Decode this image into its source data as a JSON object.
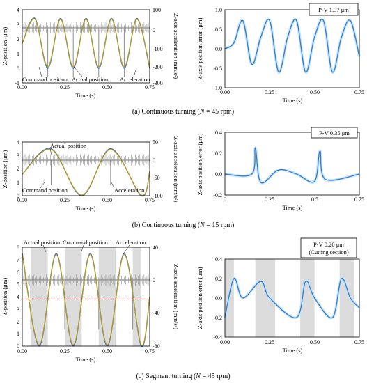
{
  "colors": {
    "command": "#3b6ec2",
    "actual": "#b89a1d",
    "acceleration": "#8c8c8c",
    "error": "#3b78c8",
    "error_band": "#bfe6f7",
    "shade": "#dcdcdc",
    "reference": "#c00000"
  },
  "chart_data": [
    {
      "id": "a-left",
      "type": "line",
      "ylabel": "Z-position (μm)",
      "y2label": "Z-axis acceleration (mm/s²)",
      "xlabel": "Time (s)",
      "xlim": [
        0,
        0.75
      ],
      "ylim": [
        -1,
        4
      ],
      "y2lim": [
        -300,
        100
      ],
      "xticks": [
        "0.00",
        "0.25",
        "0.50",
        "0.75"
      ],
      "yticks": [
        "-1",
        "0",
        "1",
        "2",
        "3",
        "4"
      ],
      "y2ticks": [
        "-300",
        "-200",
        "-100",
        "0",
        "100"
      ],
      "annotations": [
        "Command position",
        "Actual position",
        "Acceleration"
      ],
      "series": [
        {
          "name": "Command position",
          "values": [
            [
              0.0,
              1.7
            ],
            [
              0.075,
              3.4
            ],
            [
              0.15,
              0.0
            ],
            [
              0.225,
              3.4
            ],
            [
              0.3,
              0.0
            ],
            [
              0.375,
              3.4
            ],
            [
              0.45,
              0.0
            ],
            [
              0.525,
              3.4
            ],
            [
              0.6,
              0.0
            ],
            [
              0.675,
              3.4
            ],
            [
              0.75,
              0.0
            ]
          ]
        },
        {
          "name": "Actual position",
          "values": [
            [
              0.0,
              1.7
            ],
            [
              0.075,
              3.35
            ],
            [
              0.15,
              0.1
            ],
            [
              0.225,
              3.35
            ],
            [
              0.3,
              0.1
            ],
            [
              0.375,
              3.35
            ],
            [
              0.45,
              0.1
            ],
            [
              0.525,
              3.35
            ],
            [
              0.6,
              0.1
            ],
            [
              0.675,
              3.35
            ],
            [
              0.75,
              0.1
            ]
          ]
        },
        {
          "name": "Acceleration",
          "values": [
            [
              0.0,
              0
            ],
            [
              0.15,
              -270
            ],
            [
              0.3,
              -270
            ],
            [
              0.45,
              -270
            ],
            [
              0.6,
              -270
            ],
            [
              0.75,
              -270
            ]
          ]
        }
      ]
    },
    {
      "id": "a-right",
      "type": "line",
      "ylabel": "Z-axis position error (μm)",
      "xlabel": "Time (s)",
      "xlim": [
        0,
        0.75
      ],
      "ylim": [
        -1.0,
        1.0
      ],
      "xticks": [
        "0.00",
        "0.25",
        "0.50",
        "0.75"
      ],
      "yticks": [
        "-1.0",
        "-0.5",
        "0.0",
        "0.5",
        "1.0"
      ],
      "annotations": [
        "P-V 1.37 μm"
      ],
      "series": [
        {
          "name": "Position error",
          "values": [
            [
              0.0,
              0.0
            ],
            [
              0.05,
              0.15
            ],
            [
              0.1,
              0.72
            ],
            [
              0.15,
              -0.4
            ],
            [
              0.2,
              0.3
            ],
            [
              0.25,
              0.72
            ],
            [
              0.3,
              -0.6
            ],
            [
              0.35,
              0.3
            ],
            [
              0.4,
              0.72
            ],
            [
              0.45,
              -0.6
            ],
            [
              0.5,
              0.3
            ],
            [
              0.55,
              0.72
            ],
            [
              0.6,
              -0.6
            ],
            [
              0.65,
              0.3
            ],
            [
              0.7,
              0.72
            ],
            [
              0.75,
              -0.2
            ]
          ]
        }
      ]
    },
    {
      "id": "b-left",
      "type": "line",
      "ylabel": "Z-position (μm)",
      "y2label": "Z-axis acceleration (mm/s²)",
      "xlabel": "Time (s)",
      "xlim": [
        0,
        0.75
      ],
      "ylim": [
        0,
        4
      ],
      "y2lim": [
        -100,
        50
      ],
      "xticks": [
        "0.00",
        "0.25",
        "0.50",
        "0.75"
      ],
      "yticks": [
        "0",
        "1",
        "2",
        "3",
        "4"
      ],
      "y2ticks": [
        "-100",
        "-50",
        "0",
        "50"
      ],
      "annotations": [
        "Actual position",
        "Command position",
        "Acceleration"
      ],
      "series": [
        {
          "name": "Command position",
          "values": [
            [
              0.0,
              1.6
            ],
            [
              0.17,
              3.5
            ],
            [
              0.35,
              0.0
            ],
            [
              0.52,
              3.5
            ],
            [
              0.7,
              0.0
            ],
            [
              0.75,
              1.8
            ]
          ]
        },
        {
          "name": "Actual position",
          "values": [
            [
              0.0,
              1.6
            ],
            [
              0.17,
              3.45
            ],
            [
              0.35,
              0.05
            ],
            [
              0.52,
              3.45
            ],
            [
              0.7,
              0.05
            ],
            [
              0.75,
              1.8
            ]
          ]
        },
        {
          "name": "Acceleration",
          "values": [
            [
              0.0,
              0
            ],
            [
              0.17,
              -70
            ],
            [
              0.52,
              -70
            ]
          ]
        }
      ]
    },
    {
      "id": "b-right",
      "type": "line",
      "ylabel": "Z-axis position error (μm)",
      "xlabel": "Time (s)",
      "xlim": [
        0,
        0.75
      ],
      "ylim": [
        -0.2,
        0.4
      ],
      "xticks": [
        "0",
        "0.25",
        "0.5",
        "0.75"
      ],
      "yticks": [
        "-0.2",
        "0.0",
        "0.2",
        "0.4"
      ],
      "annotations": [
        "P-V 0.35 μm"
      ],
      "series": [
        {
          "name": "Position error",
          "values": [
            [
              0.0,
              0.0
            ],
            [
              0.15,
              0.0
            ],
            [
              0.17,
              0.25
            ],
            [
              0.2,
              -0.08
            ],
            [
              0.3,
              0.04
            ],
            [
              0.4,
              0.0
            ],
            [
              0.5,
              -0.07
            ],
            [
              0.53,
              0.22
            ],
            [
              0.56,
              -0.05
            ],
            [
              0.75,
              0.0
            ]
          ]
        }
      ]
    },
    {
      "id": "c-left",
      "type": "line",
      "ylabel": "Z-position (μm)",
      "y2label": "Z-axis acceleration (mm/s²)",
      "xlabel": "Time (s)",
      "xlim": [
        0,
        0.75
      ],
      "ylim": [
        0,
        8
      ],
      "y2lim": [
        -80,
        40
      ],
      "xticks": [
        "0.00",
        "0.25",
        "0.50",
        "0.75"
      ],
      "yticks": [
        "0",
        "1",
        "2",
        "3",
        "4",
        "5",
        "6",
        "7",
        "8"
      ],
      "y2ticks": [
        "-80",
        "-40",
        "0",
        "40"
      ],
      "annotations": [
        "Actual position",
        "Command position",
        "Acceleration"
      ],
      "series": [
        {
          "name": "Command position",
          "values": [
            [
              0.0,
              7.5
            ],
            [
              0.1,
              0.0
            ],
            [
              0.2,
              7.5
            ],
            [
              0.3,
              0.0
            ],
            [
              0.4,
              7.5
            ],
            [
              0.5,
              0.0
            ],
            [
              0.6,
              7.5
            ],
            [
              0.7,
              0.0
            ],
            [
              0.75,
              4.0
            ]
          ]
        },
        {
          "name": "Actual position",
          "values": [
            [
              0.0,
              7.4
            ],
            [
              0.1,
              0.1
            ],
            [
              0.2,
              7.4
            ],
            [
              0.3,
              0.1
            ],
            [
              0.4,
              7.4
            ],
            [
              0.5,
              0.1
            ],
            [
              0.6,
              7.4
            ],
            [
              0.7,
              0.1
            ],
            [
              0.75,
              4.0
            ]
          ]
        },
        {
          "name": "Acceleration",
          "values": [
            [
              0.0,
              0
            ],
            [
              0.05,
              -60
            ],
            [
              0.25,
              -60
            ],
            [
              0.45,
              -60
            ],
            [
              0.65,
              -60
            ]
          ]
        }
      ]
    },
    {
      "id": "c-right",
      "type": "line",
      "ylabel": "Z-axis position error (μm)",
      "xlabel": "Time (s)",
      "xlim": [
        0,
        0.75
      ],
      "ylim": [
        -0.4,
        0.4
      ],
      "xticks": [
        "0.00",
        "0.25",
        "0.50",
        "0.75"
      ],
      "yticks": [
        "-0.4",
        "-0.2",
        "0.0",
        "0.2",
        "0.4"
      ],
      "annotations": [
        "P-V 0.20 μm",
        "(Cutting section)"
      ],
      "series": [
        {
          "name": "Position error",
          "values": [
            [
              0.0,
              -0.2
            ],
            [
              0.05,
              0.2
            ],
            [
              0.1,
              0.0
            ],
            [
              0.2,
              0.17
            ],
            [
              0.25,
              0.0
            ],
            [
              0.4,
              -0.2
            ],
            [
              0.45,
              0.17
            ],
            [
              0.5,
              0.0
            ],
            [
              0.6,
              -0.2
            ],
            [
              0.65,
              0.2
            ],
            [
              0.7,
              0.0
            ],
            [
              0.75,
              -0.1
            ]
          ]
        }
      ]
    }
  ],
  "captions": {
    "a": {
      "prefix": "(a)  Continuous turning (",
      "var": "N",
      "suffix": " = 45 rpm)"
    },
    "b": {
      "prefix": "(b)  Continuous turning (",
      "var": "N",
      "suffix": " = 15 rpm)"
    },
    "c": {
      "prefix": "(c)  Segment turning (",
      "var": "N",
      "suffix": " = 45 rpm)"
    }
  }
}
